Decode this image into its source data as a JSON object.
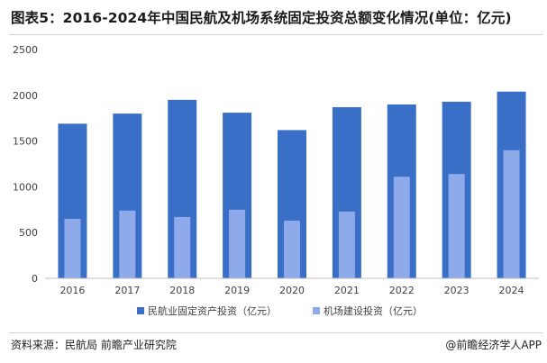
{
  "title": "图表5：2016-2024年中国民航及机场系统固定投资总额变化情况(单位：亿元)",
  "footer": {
    "source": "资料来源：民航局 前瞻产业研究院",
    "brand": "@前瞻经济学人APP"
  },
  "colors": {
    "series1": "#3a6fc8",
    "series2": "#8eaaea",
    "axis": "#bfbfbf",
    "text": "#404040"
  },
  "chart_data": {
    "type": "bar",
    "title": "图表5：2016-2024年中国民航及机场系统固定投资总额变化情况(单位：亿元)",
    "categories": [
      "2016",
      "2017",
      "2018",
      "2019",
      "2020",
      "2021",
      "2022",
      "2023",
      "2024"
    ],
    "series": [
      {
        "name": "民航业固定资产投资（亿元）",
        "values": [
          1690,
          1800,
          1950,
          1810,
          1620,
          1870,
          1900,
          1930,
          2040
        ]
      },
      {
        "name": "机场建设投资（亿元）",
        "values": [
          650,
          740,
          670,
          750,
          630,
          730,
          1110,
          1140,
          1400
        ]
      }
    ],
    "yticks": [
      "0",
      "500",
      "1000",
      "1500",
      "2000",
      "2500"
    ],
    "ylim": [
      0,
      2500
    ],
    "grid": false,
    "legend_position": "bottom"
  }
}
